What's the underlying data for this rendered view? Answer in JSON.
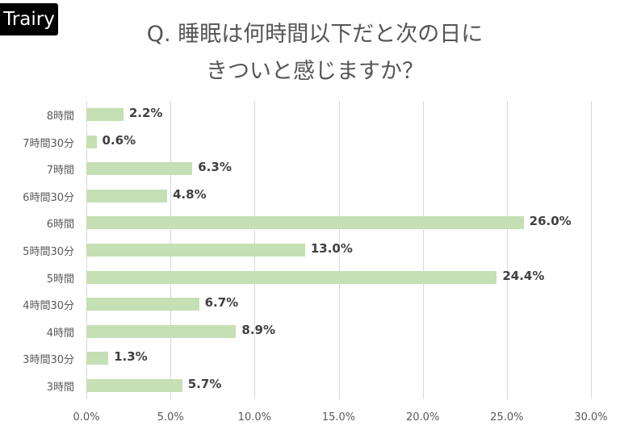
{
  "logo": "Trairy",
  "title_line1": "Q. 睡眠は何時間以下だと次の日に",
  "title_line2": "きついと感じますか？",
  "chart_data": {
    "type": "bar",
    "orientation": "horizontal",
    "title": "Q. 睡眠は何時間以下だと次の日にきついと感じますか？",
    "categories": [
      "8時間",
      "7時間30分",
      "7時間",
      "6時間30分",
      "6時間",
      "5時間30分",
      "5時間",
      "4時間30分",
      "4時間",
      "3時間30分",
      "3時間"
    ],
    "values": [
      2.2,
      0.6,
      6.3,
      4.8,
      26.0,
      13.0,
      24.4,
      6.7,
      8.9,
      1.3,
      5.7
    ],
    "labels": [
      "2.2%",
      "0.6%",
      "6.3%",
      "4.8%",
      "26.0%",
      "13.0%",
      "24.4%",
      "6.7%",
      "8.9%",
      "1.3%",
      "5.7%"
    ],
    "xlabel": "",
    "ylabel": "",
    "xlim": [
      0,
      30
    ],
    "xticks": [
      "0.0%",
      "5.0%",
      "10.0%",
      "15.0%",
      "20.0%",
      "25.0%",
      "30.0%"
    ],
    "grid": true,
    "legend": "none",
    "bar_color": "#c5e0b4"
  }
}
